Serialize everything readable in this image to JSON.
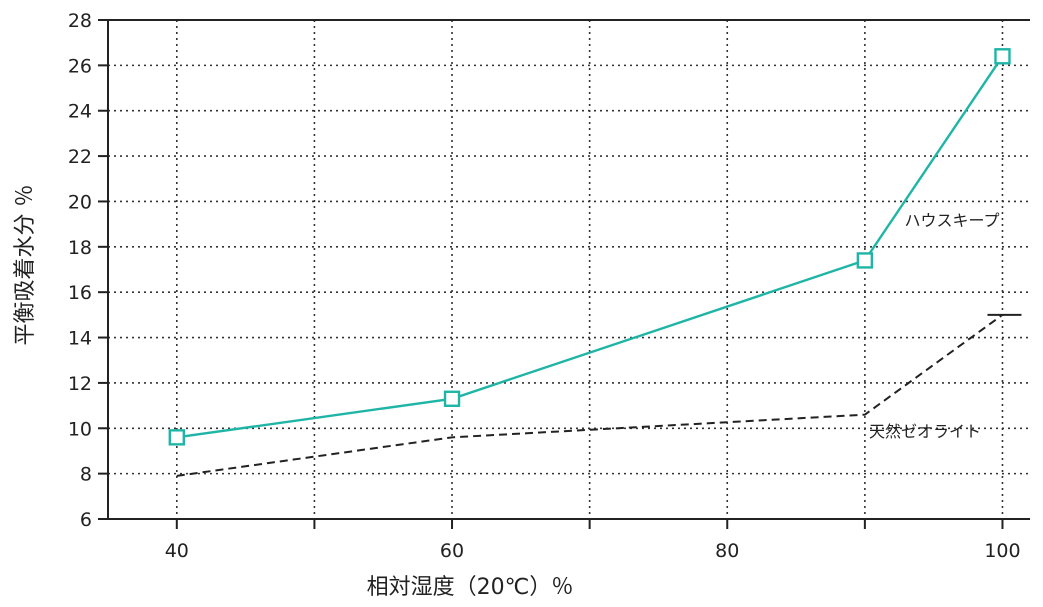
{
  "chart_data": {
    "type": "line",
    "xlabel": "相対湿度（20℃）％",
    "ylabel": "平衡吸着水分 ％",
    "xlim": [
      35,
      102
    ],
    "ylim": [
      6,
      28
    ],
    "x_ticks": [
      40,
      60,
      80,
      100
    ],
    "x_tick_labels": [
      "40",
      "60",
      "80",
      "100"
    ],
    "y_ticks": [
      6,
      8,
      10,
      12,
      14,
      16,
      18,
      20,
      22,
      24,
      26,
      28
    ],
    "y_tick_labels": [
      "6",
      "8",
      "10",
      "12",
      "14",
      "16",
      "18",
      "20",
      "22",
      "24",
      "26",
      "28"
    ],
    "grid": true,
    "series": [
      {
        "name": "ハウスキープ",
        "color": "#1fb5a6",
        "style": "solid",
        "marker": "square",
        "x": [
          40,
          60,
          90,
          100
        ],
        "y": [
          9.6,
          11.3,
          17.4,
          26.4
        ]
      },
      {
        "name": "天然ゼオライト",
        "color": "#222222",
        "style": "dashed",
        "marker": "none",
        "x": [
          40,
          60,
          90,
          100
        ],
        "y": [
          7.9,
          9.6,
          10.6,
          15.0
        ]
      }
    ]
  }
}
